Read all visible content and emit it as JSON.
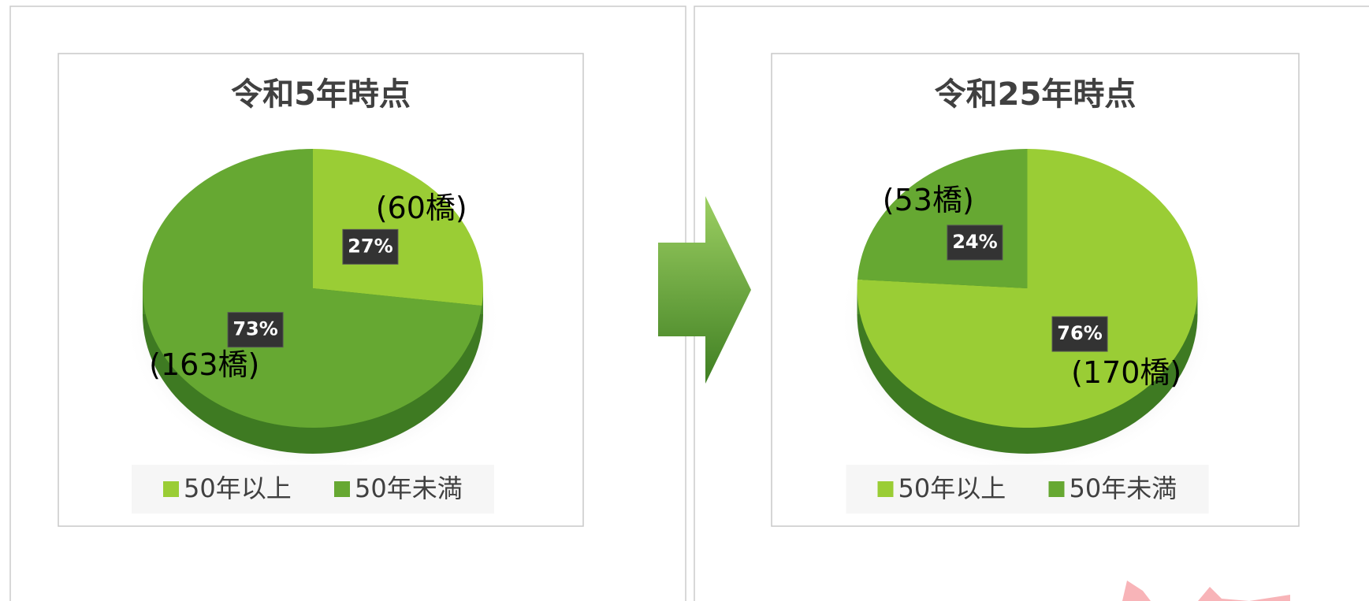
{
  "chart_data": [
    {
      "type": "pie",
      "title": "令和5年時点",
      "categories": [
        "50年以上",
        "50年未満"
      ],
      "values": [
        27,
        73
      ],
      "value_labels": [
        "27%",
        "73%"
      ],
      "count_labels": [
        "(60橋)",
        "(163橋)"
      ],
      "colors": [
        "#9acd35",
        "#66a832"
      ],
      "legend": "bottom"
    },
    {
      "type": "pie",
      "title": "令和25年時点",
      "categories": [
        "50年以上",
        "50年未満"
      ],
      "values": [
        76,
        24
      ],
      "value_labels": [
        "76%",
        "24%"
      ],
      "count_labels": [
        "(170橋)",
        "(53橋)"
      ],
      "colors": [
        "#9acd35",
        "#66a832"
      ],
      "legend": "bottom"
    }
  ]
}
